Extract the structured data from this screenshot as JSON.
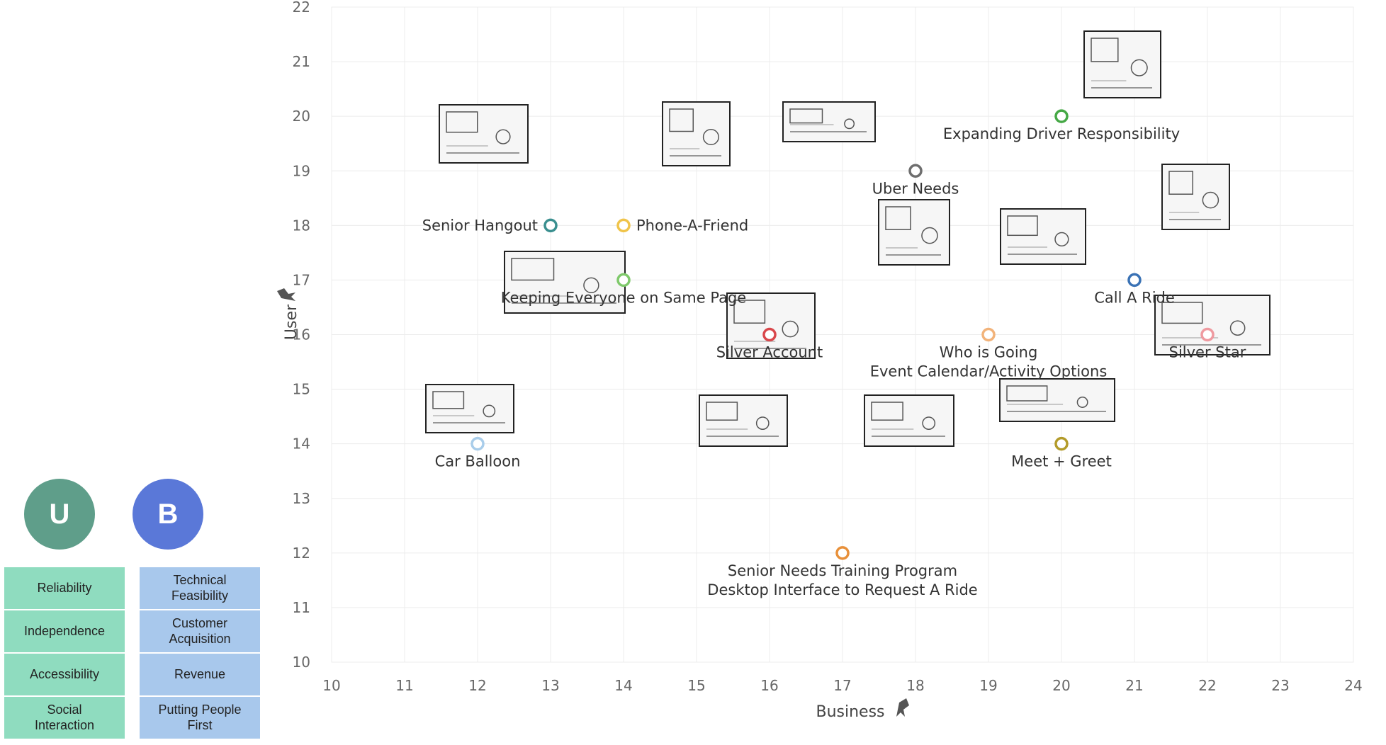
{
  "panel": {
    "user": {
      "letter": "U",
      "color": "#5f9e8a",
      "items": [
        "Reliability",
        "Independence",
        "Accessibility",
        "Social\nInteraction"
      ]
    },
    "business": {
      "letter": "B",
      "color": "#5a78d8",
      "items": [
        "Technical\nFeasibility",
        "Customer\nAcquisition",
        "Revenue",
        "Putting People\nFirst"
      ]
    }
  },
  "pin_icon": "pin-icon",
  "chart_data": {
    "type": "scatter",
    "xlabel": "Business",
    "ylabel": "User",
    "xlim": [
      10,
      24
    ],
    "ylim": [
      10,
      22
    ],
    "x_ticks": [
      10,
      11,
      12,
      13,
      14,
      15,
      16,
      17,
      18,
      19,
      20,
      21,
      22,
      23,
      24
    ],
    "y_ticks": [
      10,
      11,
      12,
      13,
      14,
      15,
      16,
      17,
      18,
      19,
      20,
      21,
      22
    ],
    "grid": true,
    "points": [
      {
        "x": 13,
        "y": 18,
        "label": "Senior Hangout",
        "color": "#3a8f8f",
        "label_pos": "left"
      },
      {
        "x": 14,
        "y": 18,
        "label": "Phone-A-Friend",
        "color": "#f0c44a",
        "label_pos": "right"
      },
      {
        "x": 14,
        "y": 17,
        "label": "Keeping Everyone on Same Page",
        "color": "#7fc96b",
        "label_pos": "below"
      },
      {
        "x": 18,
        "y": 19,
        "label": "Uber Needs",
        "color": "#6e6e6e",
        "label_pos": "below"
      },
      {
        "x": 20,
        "y": 20,
        "label": "Expanding Driver Responsibility",
        "color": "#45a845",
        "label_pos": "below"
      },
      {
        "x": 21,
        "y": 17,
        "label": "Call A Ride",
        "color": "#3a72b5",
        "label_pos": "below"
      },
      {
        "x": 16,
        "y": 16,
        "label": "Silver Account",
        "color": "#d9474b",
        "label_pos": "below"
      },
      {
        "x": 19,
        "y": 16,
        "label": "Who is Going\nEvent Calendar/Activity Options",
        "color": "#f2b37a",
        "label_pos": "below"
      },
      {
        "x": 22,
        "y": 16,
        "label": "Silver Star",
        "color": "#ef9aa0",
        "label_pos": "below"
      },
      {
        "x": 12,
        "y": 14,
        "label": "Car Balloon",
        "color": "#a9cdea",
        "label_pos": "below"
      },
      {
        "x": 20,
        "y": 14,
        "label": "Meet + Greet",
        "color": "#b39b2a",
        "label_pos": "below"
      },
      {
        "x": 17,
        "y": 12,
        "label": "Senior Needs Training Program\nDesktop Interface to Request A Ride",
        "color": "#e8903a",
        "label_pos": "below"
      }
    ]
  }
}
